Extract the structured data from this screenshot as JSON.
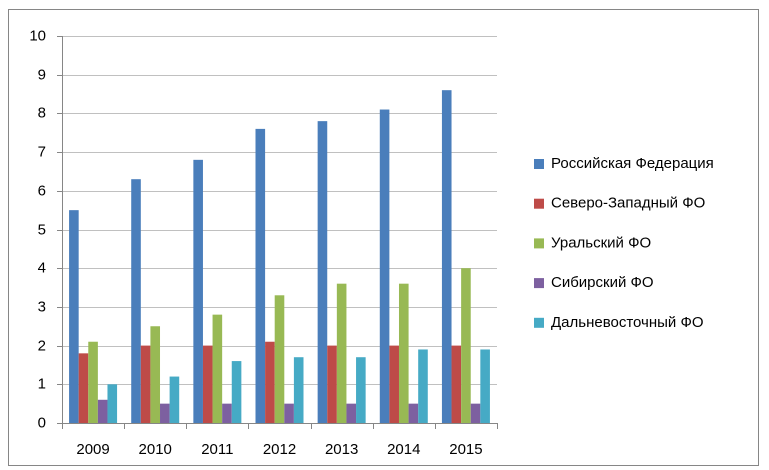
{
  "chart_data": {
    "type": "bar",
    "categories": [
      "2009",
      "2010",
      "2011",
      "2012",
      "2013",
      "2014",
      "2015"
    ],
    "series": [
      {
        "name": "Российская Федерация",
        "color": "#4a7ebb",
        "values": [
          5.5,
          6.3,
          6.8,
          7.6,
          7.8,
          8.1,
          8.6
        ]
      },
      {
        "name": "Северо-Западный ФО",
        "color": "#be4b48",
        "values": [
          1.8,
          2.0,
          2.0,
          2.1,
          2.0,
          2.0,
          2.0
        ]
      },
      {
        "name": "Уральский ФО",
        "color": "#98b954",
        "values": [
          2.1,
          2.5,
          2.8,
          3.3,
          3.6,
          3.6,
          4.0
        ]
      },
      {
        "name": "Сибирский ФО",
        "color": "#7d60a0",
        "values": [
          0.6,
          0.5,
          0.5,
          0.5,
          0.5,
          0.5,
          0.5
        ]
      },
      {
        "name": "Дальневосточный ФО",
        "color": "#46aac5",
        "values": [
          1.0,
          1.2,
          1.6,
          1.7,
          1.7,
          1.9,
          1.9
        ]
      }
    ],
    "ylim": [
      0,
      10
    ],
    "yticks": [
      0,
      1,
      2,
      3,
      4,
      5,
      6,
      7,
      8,
      9,
      10
    ],
    "grid": true,
    "legend": "right"
  }
}
